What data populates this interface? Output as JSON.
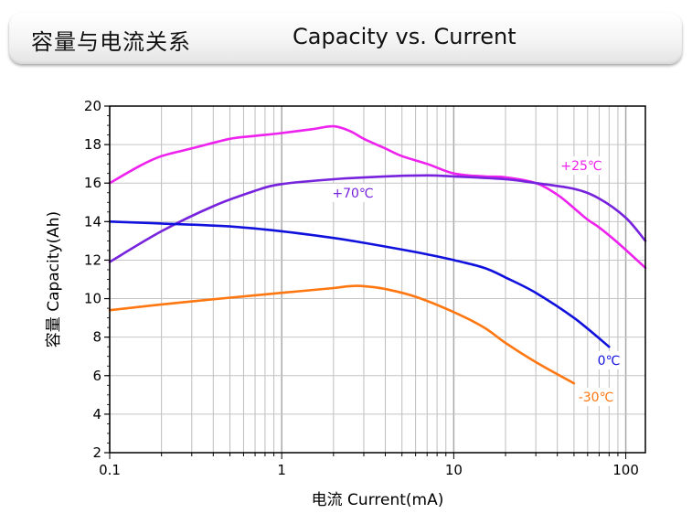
{
  "banner": {
    "title_cn": "容量与电流关系",
    "title_en": "Capacity vs. Current"
  },
  "chart_data": {
    "type": "line",
    "xlabel": "电流 Current(mA)",
    "ylabel": "容量 Capacity(Ah)",
    "x_scale": "log",
    "xlim": [
      0.1,
      130
    ],
    "ylim": [
      2,
      20
    ],
    "x_ticks": [
      "0.1",
      "1",
      "10",
      "100"
    ],
    "x_tick_values": [
      0.1,
      1,
      10,
      100
    ],
    "y_ticks": [
      2,
      4,
      6,
      8,
      10,
      12,
      14,
      16,
      18,
      20
    ],
    "grid": true,
    "legend": "inline labels",
    "series": [
      {
        "name": "+25℃",
        "color": "#ee22ee",
        "points": [
          [
            0.1,
            16.0
          ],
          [
            0.15,
            16.9
          ],
          [
            0.2,
            17.4
          ],
          [
            0.3,
            17.8
          ],
          [
            0.5,
            18.3
          ],
          [
            0.7,
            18.45
          ],
          [
            1,
            18.6
          ],
          [
            1.5,
            18.8
          ],
          [
            2,
            18.95
          ],
          [
            2.5,
            18.7
          ],
          [
            3,
            18.3
          ],
          [
            4,
            17.8
          ],
          [
            5,
            17.4
          ],
          [
            7,
            17.0
          ],
          [
            10,
            16.5
          ],
          [
            15,
            16.35
          ],
          [
            20,
            16.3
          ],
          [
            30,
            16.0
          ],
          [
            40,
            15.4
          ],
          [
            50,
            14.7
          ],
          [
            60,
            14.1
          ],
          [
            70,
            13.7
          ],
          [
            90,
            12.9
          ],
          [
            130,
            11.6
          ]
        ]
      },
      {
        "name": "+70℃",
        "color": "#7722dd",
        "points": [
          [
            0.1,
            11.9
          ],
          [
            0.2,
            13.5
          ],
          [
            0.4,
            14.8
          ],
          [
            0.7,
            15.6
          ],
          [
            1,
            15.95
          ],
          [
            2,
            16.2
          ],
          [
            4,
            16.35
          ],
          [
            7,
            16.4
          ],
          [
            10,
            16.35
          ],
          [
            20,
            16.2
          ],
          [
            30,
            16.0
          ],
          [
            50,
            15.7
          ],
          [
            70,
            15.2
          ],
          [
            100,
            14.2
          ],
          [
            130,
            13.0
          ]
        ]
      },
      {
        "name": "0℃",
        "color": "#1111dd",
        "points": [
          [
            0.1,
            14.0
          ],
          [
            0.2,
            13.9
          ],
          [
            0.5,
            13.75
          ],
          [
            1,
            13.5
          ],
          [
            2,
            13.15
          ],
          [
            3,
            12.9
          ],
          [
            5,
            12.55
          ],
          [
            7,
            12.3
          ],
          [
            10,
            12.0
          ],
          [
            15,
            11.6
          ],
          [
            20,
            11.1
          ],
          [
            30,
            10.3
          ],
          [
            50,
            9.0
          ],
          [
            80,
            7.5
          ]
        ]
      },
      {
        "name": "-30℃",
        "color": "#ff7711",
        "points": [
          [
            0.1,
            9.4
          ],
          [
            0.2,
            9.7
          ],
          [
            0.5,
            10.05
          ],
          [
            1,
            10.3
          ],
          [
            2,
            10.55
          ],
          [
            2.5,
            10.65
          ],
          [
            3,
            10.65
          ],
          [
            4,
            10.5
          ],
          [
            6,
            10.1
          ],
          [
            10,
            9.3
          ],
          [
            15,
            8.5
          ],
          [
            20,
            7.7
          ],
          [
            30,
            6.7
          ],
          [
            50,
            5.6
          ]
        ]
      }
    ]
  }
}
